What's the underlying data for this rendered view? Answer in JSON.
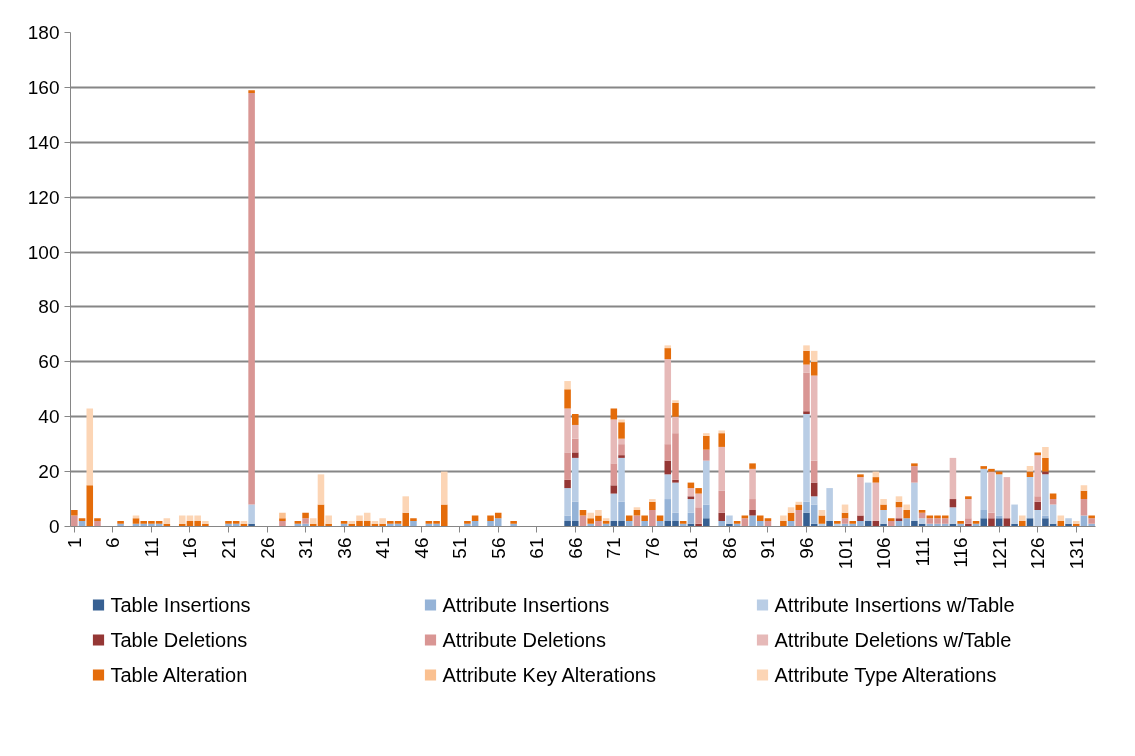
{
  "chart_data": {
    "type": "bar",
    "stacked": true,
    "grid": "y",
    "legend": "bottom",
    "ylim": [
      0,
      180
    ],
    "yticks": [
      0,
      20,
      40,
      60,
      80,
      100,
      120,
      140,
      160,
      180
    ],
    "categories": [
      "1",
      null,
      null,
      null,
      null,
      "6",
      null,
      null,
      null,
      null,
      "11",
      null,
      null,
      null,
      null,
      "16",
      null,
      null,
      null,
      null,
      "21",
      null,
      null,
      null,
      null,
      "26",
      null,
      null,
      null,
      null,
      "31",
      null,
      null,
      null,
      null,
      "36",
      null,
      null,
      null,
      null,
      "41",
      null,
      null,
      null,
      null,
      "46",
      null,
      null,
      null,
      null,
      "51",
      null,
      null,
      null,
      null,
      "56",
      null,
      null,
      null,
      null,
      "61",
      null,
      null,
      null,
      null,
      "66",
      null,
      null,
      null,
      null,
      "71",
      null,
      null,
      null,
      null,
      "76",
      null,
      null,
      null,
      null,
      "81",
      null,
      null,
      null,
      null,
      "86",
      null,
      null,
      null,
      null,
      "91",
      null,
      null,
      null,
      null,
      "96",
      null,
      null,
      null,
      null,
      "101",
      null,
      null,
      null,
      null,
      "106",
      null,
      null,
      null,
      null,
      "111",
      null,
      null,
      null,
      null,
      "116",
      null,
      null,
      null,
      null,
      "121",
      null,
      null,
      null,
      null,
      "126",
      null,
      null,
      null,
      null,
      "131",
      null,
      null
    ],
    "series": [
      {
        "name": "Table Insertions",
        "color": "#376092",
        "values": [
          0,
          0,
          0,
          0,
          0,
          0,
          0,
          0,
          0,
          0,
          0,
          0,
          0,
          0,
          0,
          0,
          0,
          0,
          0,
          0,
          0,
          0,
          0,
          1,
          0,
          0,
          0,
          0,
          0,
          0,
          0,
          0,
          0,
          0,
          0,
          0,
          0,
          0,
          0,
          0,
          0,
          0,
          0,
          0,
          0,
          0,
          0,
          0,
          0,
          0,
          0,
          0,
          0,
          0,
          0,
          0,
          0,
          0,
          0,
          0,
          0,
          0,
          0,
          0,
          2,
          2,
          0,
          0,
          0,
          0,
          2,
          2,
          0,
          0,
          0,
          0,
          0,
          2,
          2,
          0,
          1,
          0,
          3,
          0,
          0,
          1,
          0,
          0,
          0,
          0,
          0,
          0,
          0,
          0,
          0,
          5,
          1,
          0,
          2,
          0,
          0,
          0,
          0,
          2,
          0,
          1,
          0,
          0,
          0,
          2,
          1,
          0,
          0,
          0,
          1,
          0,
          0,
          0,
          3,
          0,
          3,
          0,
          1,
          0,
          3,
          0,
          3,
          1,
          0,
          1,
          0,
          0,
          0
        ]
      },
      {
        "name": "Attribute Insertions",
        "color": "#95b3d7",
        "values": [
          0,
          2,
          0,
          0,
          0,
          0,
          1,
          0,
          1,
          1,
          1,
          1,
          0,
          0,
          0,
          0,
          0,
          0,
          0,
          0,
          1,
          1,
          0,
          0,
          0,
          0,
          0,
          0,
          0,
          1,
          1,
          0,
          0,
          0,
          0,
          1,
          0,
          0,
          0,
          0,
          0,
          1,
          1,
          0,
          2,
          0,
          1,
          1,
          0,
          0,
          0,
          1,
          2,
          0,
          2,
          3,
          0,
          1,
          0,
          0,
          0,
          0,
          0,
          0,
          2,
          7,
          0,
          1,
          0,
          1,
          0,
          7,
          2,
          0,
          2,
          0,
          2,
          8,
          3,
          1,
          4,
          0,
          5,
          0,
          2,
          0,
          1,
          0,
          4,
          2,
          0,
          0,
          0,
          2,
          0,
          4,
          7,
          0,
          0,
          0,
          1,
          1,
          2,
          0,
          0,
          0,
          0,
          2,
          3,
          0,
          0,
          1,
          1,
          1,
          0,
          1,
          0,
          1,
          3,
          0,
          1,
          0,
          0,
          0,
          0,
          0,
          1,
          0,
          0,
          0,
          0,
          4,
          1
        ]
      },
      {
        "name": "Attribute Insertions w/Table",
        "color": "#b9cde5",
        "values": [
          0,
          0,
          0,
          0,
          0,
          0,
          0,
          0,
          0,
          0,
          0,
          0,
          0,
          0,
          0,
          0,
          0,
          0,
          0,
          0,
          0,
          0,
          0,
          7,
          0,
          0,
          0,
          0,
          0,
          0,
          0,
          0,
          0,
          0,
          0,
          0,
          0,
          0,
          0,
          0,
          0,
          0,
          0,
          0,
          0,
          0,
          0,
          0,
          0,
          0,
          0,
          0,
          0,
          0,
          0,
          0,
          0,
          0,
          0,
          0,
          0,
          0,
          0,
          0,
          10,
          16,
          0,
          0,
          0,
          0,
          10,
          16,
          0,
          0,
          0,
          0,
          0,
          9,
          11,
          0,
          5,
          0,
          16,
          0,
          0,
          3,
          0,
          0,
          0,
          0,
          0,
          0,
          0,
          0,
          0,
          32,
          3,
          1,
          12,
          1,
          0,
          0,
          0,
          14,
          0,
          5,
          0,
          0,
          0,
          14,
          2,
          0,
          0,
          0,
          6,
          0,
          0,
          0,
          15,
          0,
          15,
          0,
          7,
          0,
          15,
          6,
          15,
          7,
          0,
          2,
          0,
          0,
          0
        ]
      },
      {
        "name": "Table Deletions",
        "color": "#953735",
        "values": [
          0,
          0,
          0,
          0,
          0,
          0,
          0,
          0,
          0,
          0,
          0,
          0,
          0,
          0,
          0,
          0,
          0,
          0,
          0,
          0,
          0,
          0,
          0,
          0,
          0,
          0,
          0,
          0,
          0,
          0,
          0,
          0,
          0,
          0,
          0,
          0,
          0,
          0,
          0,
          0,
          0,
          0,
          0,
          0,
          0,
          0,
          0,
          0,
          0,
          0,
          0,
          0,
          0,
          0,
          0,
          0,
          0,
          0,
          0,
          0,
          0,
          0,
          0,
          0,
          3,
          2,
          0,
          0,
          0,
          0,
          3,
          1,
          0,
          0,
          0,
          0,
          0,
          5,
          1,
          0,
          1,
          1,
          0,
          0,
          3,
          0,
          0,
          0,
          2,
          0,
          0,
          0,
          0,
          0,
          0,
          1,
          5,
          0,
          0,
          0,
          0,
          0,
          2,
          0,
          2,
          0,
          0,
          1,
          0,
          0,
          0,
          0,
          0,
          0,
          3,
          0,
          1,
          0,
          0,
          3,
          0,
          3,
          0,
          0,
          0,
          3,
          1,
          0,
          0,
          0,
          0,
          0,
          0
        ]
      },
      {
        "name": "Attribute Deletions",
        "color": "#d99694",
        "values": [
          4,
          0,
          0,
          2,
          0,
          0,
          0,
          0,
          0,
          0,
          0,
          0,
          0,
          0,
          0,
          0,
          0,
          0,
          0,
          0,
          0,
          0,
          0,
          150,
          0,
          0,
          0,
          2,
          0,
          0,
          2,
          0,
          0,
          0,
          0,
          0,
          0,
          0,
          0,
          0,
          0,
          0,
          0,
          0,
          0,
          0,
          0,
          0,
          0,
          0,
          0,
          0,
          0,
          0,
          0,
          0,
          0,
          0,
          0,
          0,
          0,
          0,
          0,
          0,
          10,
          5,
          4,
          0,
          2,
          0,
          8,
          4,
          0,
          4,
          0,
          6,
          0,
          6,
          17,
          0,
          0,
          6,
          4,
          0,
          8,
          0,
          0,
          3,
          4,
          0,
          2,
          0,
          0,
          0,
          6,
          14,
          8,
          0,
          0,
          0,
          2,
          0,
          0,
          0,
          0,
          0,
          2,
          0,
          0,
          6,
          2,
          2,
          2,
          2,
          0,
          0,
          2,
          0,
          0,
          2,
          0,
          0,
          0,
          0,
          0,
          2,
          0,
          2,
          0,
          0,
          0,
          6,
          2
        ]
      },
      {
        "name": "Attribute Deletions w/Table",
        "color": "#e6b9b8",
        "values": [
          0,
          0,
          0,
          0,
          0,
          0,
          0,
          0,
          0,
          0,
          0,
          0,
          0,
          0,
          0,
          0,
          0,
          0,
          0,
          0,
          0,
          0,
          0,
          0,
          0,
          0,
          0,
          0,
          0,
          0,
          0,
          0,
          0,
          0,
          0,
          0,
          0,
          0,
          0,
          0,
          0,
          0,
          0,
          0,
          0,
          0,
          0,
          0,
          0,
          0,
          0,
          0,
          0,
          0,
          0,
          0,
          0,
          0,
          0,
          0,
          0,
          0,
          0,
          0,
          16,
          5,
          0,
          0,
          0,
          0,
          16,
          2,
          0,
          0,
          0,
          0,
          0,
          31,
          6,
          0,
          3,
          5,
          0,
          0,
          16,
          0,
          0,
          0,
          11,
          0,
          0,
          0,
          0,
          0,
          0,
          3,
          31,
          0,
          0,
          0,
          0,
          0,
          14,
          0,
          14,
          0,
          0,
          4,
          0,
          0,
          0,
          0,
          0,
          0,
          15,
          0,
          7,
          0,
          0,
          15,
          0,
          15,
          0,
          0,
          0,
          15,
          0,
          0,
          0,
          0,
          0,
          0,
          0
        ]
      },
      {
        "name": "Table Alteration",
        "color": "#e46c0a",
        "values": [
          2,
          1,
          15,
          1,
          0,
          0,
          1,
          0,
          2,
          1,
          1,
          1,
          1,
          0,
          1,
          2,
          2,
          1,
          0,
          0,
          1,
          1,
          1,
          1,
          0,
          0,
          0,
          1,
          0,
          1,
          2,
          1,
          8,
          1,
          0,
          1,
          1,
          2,
          2,
          1,
          1,
          1,
          1,
          5,
          1,
          0,
          1,
          1,
          8,
          0,
          0,
          1,
          2,
          0,
          2,
          2,
          0,
          1,
          0,
          0,
          0,
          0,
          0,
          0,
          7,
          4,
          2,
          2,
          2,
          1,
          4,
          6,
          2,
          2,
          2,
          3,
          2,
          4,
          5,
          1,
          2,
          2,
          5,
          0,
          5,
          0,
          1,
          1,
          2,
          2,
          1,
          0,
          2,
          3,
          2,
          5,
          5,
          3,
          0,
          1,
          2,
          1,
          1,
          0,
          2,
          2,
          1,
          2,
          3,
          1,
          1,
          1,
          1,
          1,
          0,
          1,
          1,
          1,
          1,
          1,
          1,
          0,
          0,
          2,
          2,
          1,
          5,
          2,
          2,
          0,
          1,
          3,
          1
        ]
      },
      {
        "name": "Attribute Key Alterations",
        "color": "#fac090",
        "values": [
          0,
          0,
          0,
          0,
          0,
          0,
          0,
          0,
          0,
          0,
          0,
          0,
          0,
          0,
          0,
          0,
          0,
          0,
          0,
          0,
          0,
          0,
          0,
          0,
          0,
          0,
          0,
          2,
          0,
          0,
          0,
          0,
          0,
          0,
          0,
          0,
          0,
          0,
          0,
          0,
          0,
          0,
          0,
          0,
          0,
          0,
          0,
          0,
          0,
          0,
          0,
          0,
          0,
          0,
          0,
          0,
          0,
          0,
          0,
          0,
          0,
          0,
          0,
          0,
          0,
          0,
          0,
          0,
          0,
          0,
          0,
          0,
          0,
          0,
          0,
          0,
          0,
          0,
          0,
          0,
          0,
          0,
          0,
          0,
          0,
          0,
          0,
          0,
          0,
          0,
          0,
          0,
          0,
          0,
          0,
          0,
          0,
          0,
          0,
          0,
          0,
          0,
          0,
          0,
          0,
          0,
          0,
          0,
          0,
          0,
          0,
          0,
          0,
          0,
          0,
          0,
          0,
          0,
          0,
          0,
          0,
          0,
          0,
          0,
          0,
          0,
          0,
          0,
          0,
          0,
          0,
          0,
          0
        ]
      },
      {
        "name": "Attribute Type Alterations",
        "color": "#fcd5b5",
        "values": [
          0,
          0,
          28,
          0,
          0,
          0,
          0,
          0,
          1,
          0,
          0,
          0,
          2,
          0,
          3,
          2,
          2,
          1,
          0,
          0,
          0,
          0,
          1,
          0,
          0,
          0,
          0,
          0,
          0,
          0,
          0,
          2,
          11,
          3,
          0,
          0,
          1,
          2,
          3,
          1,
          2,
          0,
          0,
          6,
          0,
          0,
          0,
          0,
          12,
          0,
          0,
          0,
          0,
          0,
          0,
          0,
          0,
          0,
          0,
          0,
          0,
          0,
          0,
          0,
          3,
          0,
          0,
          2,
          2,
          1,
          0,
          1,
          0,
          1,
          0,
          1,
          0,
          1,
          1,
          0,
          0,
          0,
          1,
          0,
          1,
          0,
          0,
          0,
          0,
          0,
          0,
          0,
          2,
          2,
          1,
          2,
          4,
          2,
          0,
          0,
          3,
          0,
          0,
          0,
          2,
          2,
          0,
          2,
          2,
          0,
          0,
          0,
          0,
          0,
          0,
          0,
          0,
          0,
          0,
          0,
          0,
          0,
          0,
          2,
          2,
          0,
          4,
          0,
          2,
          0,
          1,
          2,
          0
        ]
      }
    ]
  }
}
